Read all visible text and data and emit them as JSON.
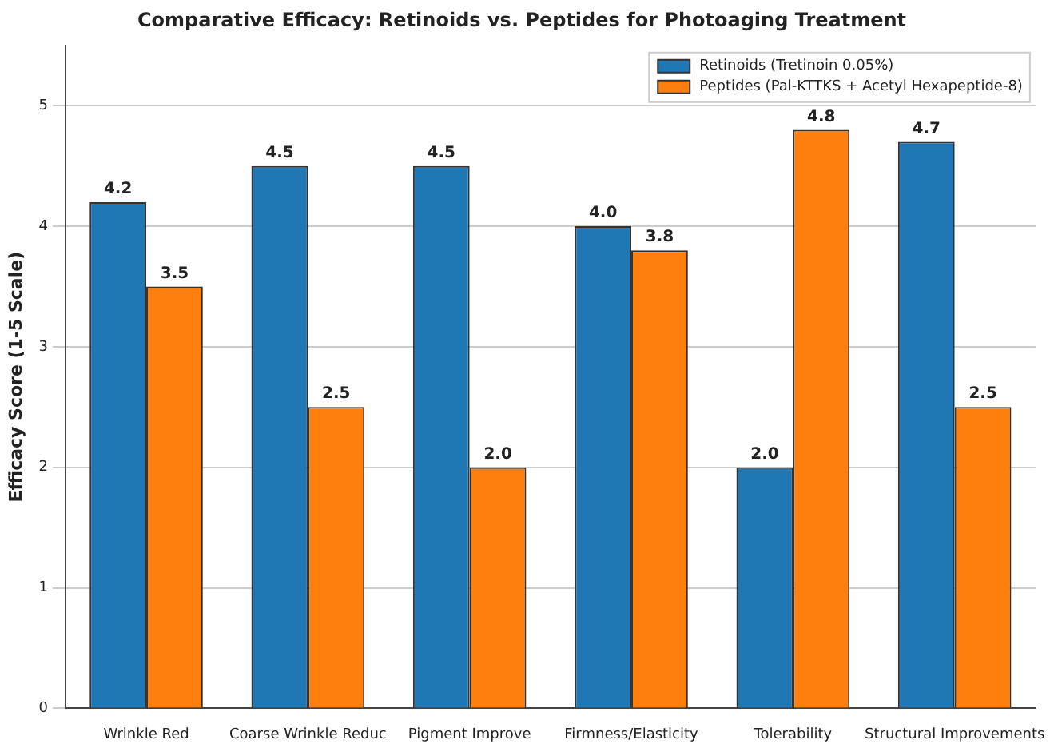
{
  "chart_data": {
    "type": "bar",
    "title": "Comparative Efficacy: Retinoids vs. Peptides for Photoaging Treatment",
    "ylabel": "Efficacy Score (1-5 Scale)",
    "categories": [
      "Wrinkle Red",
      "Coarse Wrinkle Reduc",
      "Pigment Improve",
      "Firmness/Elasticity",
      "Tolerability",
      "Structural Improvements"
    ],
    "series": [
      {
        "name": "Retinoids (Tretinoin 0.05%)",
        "color": "#1f77b4",
        "values": [
          4.2,
          4.5,
          4.5,
          4.0,
          2.0,
          4.7
        ],
        "value_labels": [
          "4.2",
          "4.5",
          "4.5",
          "4.0",
          "2.0",
          "4.7"
        ]
      },
      {
        "name": "Peptides (Pal-KTTKS + Acetyl Hexapeptide-8)",
        "color": "#ff7f0e",
        "values": [
          3.5,
          2.5,
          2.0,
          3.8,
          4.8,
          2.5
        ],
        "value_labels": [
          "3.5",
          "2.5",
          "2.0",
          "3.8",
          "4.8",
          "2.5"
        ]
      }
    ],
    "ylim": [
      0,
      5.5
    ],
    "yticks": [
      0,
      1,
      2,
      3,
      4,
      5
    ],
    "grid": "y",
    "legend": "top right"
  }
}
